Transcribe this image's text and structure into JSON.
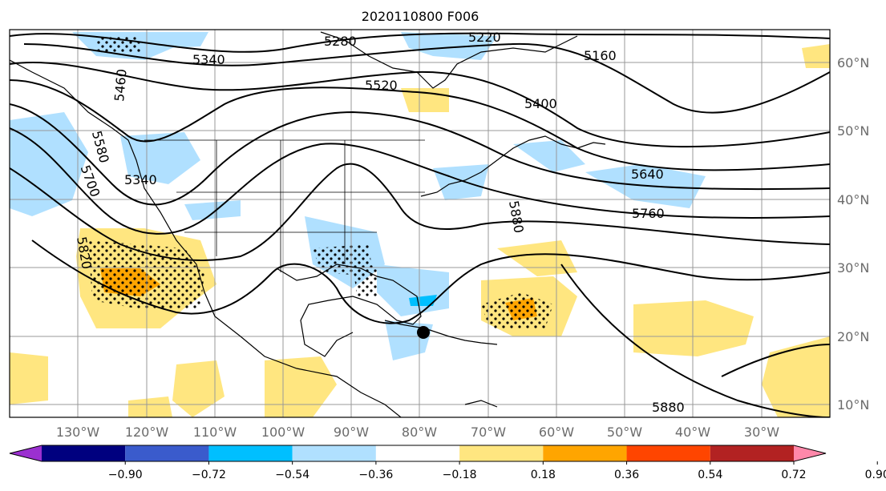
{
  "map": {
    "title": "2020110800 F006",
    "lat_labels": [
      "60°N",
      "50°N",
      "40°N",
      "30°N",
      "20°N",
      "10°N"
    ],
    "lon_labels": [
      "130°W",
      "120°W",
      "110°W",
      "100°W",
      "90°W",
      "80°W",
      "70°W",
      "60°W",
      "50°W",
      "40°W",
      "30°W"
    ],
    "contour_labels": [
      "5340",
      "5280",
      "5220",
      "5160",
      "5460",
      "5520",
      "5400",
      "5580",
      "5340",
      "5640",
      "5700",
      "5880",
      "5760",
      "5820",
      "5880"
    ],
    "colorbar": {
      "tick_labels": [
        "−0.90",
        "−0.72",
        "−0.54",
        "−0.36",
        "−0.18",
        "0.18",
        "0.36",
        "0.54",
        "0.72",
        "0.90"
      ],
      "colors": [
        "#9b30d0",
        "#00007f",
        "#3a5bcc",
        "#00bfff",
        "#b0e0ff",
        "#ffffff",
        "#ffe680",
        "#ffa500",
        "#ff4500",
        "#b22222",
        "#ff88aa"
      ]
    }
  }
}
